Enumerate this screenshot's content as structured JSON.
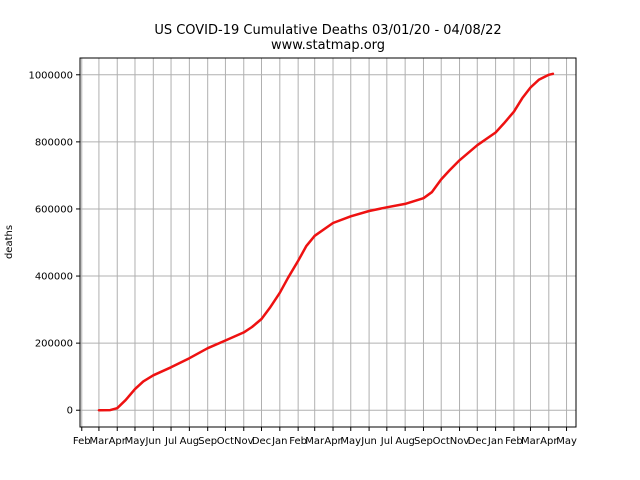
{
  "chart_data": {
    "type": "line",
    "title": "US COVID-19 Cumulative Deaths 03/01/20 - 04/08/22",
    "subtitle": "www.statmap.org",
    "xlabel": "",
    "ylabel": "deaths",
    "grid": true,
    "series_color": "#ee1111",
    "x_axis_type": "date",
    "xlim": [
      "2020-01-29",
      "2022-05-17"
    ],
    "ylim": [
      -50000,
      1050000
    ],
    "x_ticks": [
      {
        "date": "2020-02-01",
        "label": "Feb"
      },
      {
        "date": "2020-03-01",
        "label": "Mar"
      },
      {
        "date": "2020-04-01",
        "label": "Apr"
      },
      {
        "date": "2020-05-01",
        "label": "May"
      },
      {
        "date": "2020-06-01",
        "label": "Jun"
      },
      {
        "date": "2020-07-01",
        "label": "Jul"
      },
      {
        "date": "2020-08-01",
        "label": "Aug"
      },
      {
        "date": "2020-09-01",
        "label": "Sep"
      },
      {
        "date": "2020-10-01",
        "label": "Oct"
      },
      {
        "date": "2020-11-01",
        "label": "Nov"
      },
      {
        "date": "2020-12-01",
        "label": "Dec"
      },
      {
        "date": "2021-01-01",
        "label": "Jan"
      },
      {
        "date": "2021-02-01",
        "label": "Feb"
      },
      {
        "date": "2021-03-01",
        "label": "Mar"
      },
      {
        "date": "2021-04-01",
        "label": "Apr"
      },
      {
        "date": "2021-05-01",
        "label": "May"
      },
      {
        "date": "2021-06-01",
        "label": "Jun"
      },
      {
        "date": "2021-07-01",
        "label": "Jul"
      },
      {
        "date": "2021-08-01",
        "label": "Aug"
      },
      {
        "date": "2021-09-01",
        "label": "Sep"
      },
      {
        "date": "2021-10-01",
        "label": "Oct"
      },
      {
        "date": "2021-11-01",
        "label": "Nov"
      },
      {
        "date": "2021-12-01",
        "label": "Dec"
      },
      {
        "date": "2022-01-01",
        "label": "Jan"
      },
      {
        "date": "2022-02-01",
        "label": "Feb"
      },
      {
        "date": "2022-03-01",
        "label": "Mar"
      },
      {
        "date": "2022-04-01",
        "label": "Apr"
      },
      {
        "date": "2022-05-01",
        "label": "May"
      }
    ],
    "y_ticks": [
      {
        "value": 0,
        "label": "0"
      },
      {
        "value": 200000,
        "label": "200000"
      },
      {
        "value": 400000,
        "label": "400000"
      },
      {
        "value": 600000,
        "label": "600000"
      },
      {
        "value": 800000,
        "label": "800000"
      },
      {
        "value": 1000000,
        "label": "1000000"
      }
    ],
    "series": [
      {
        "points": [
          {
            "date": "2020-03-01",
            "y": 0
          },
          {
            "date": "2020-03-20",
            "y": 300
          },
          {
            "date": "2020-04-01",
            "y": 6000
          },
          {
            "date": "2020-04-15",
            "y": 30000
          },
          {
            "date": "2020-05-01",
            "y": 63000
          },
          {
            "date": "2020-05-15",
            "y": 86000
          },
          {
            "date": "2020-06-01",
            "y": 104000
          },
          {
            "date": "2020-07-01",
            "y": 128000
          },
          {
            "date": "2020-08-01",
            "y": 155000
          },
          {
            "date": "2020-09-01",
            "y": 185000
          },
          {
            "date": "2020-10-01",
            "y": 208000
          },
          {
            "date": "2020-11-01",
            "y": 232000
          },
          {
            "date": "2020-11-15",
            "y": 248000
          },
          {
            "date": "2020-12-01",
            "y": 272000
          },
          {
            "date": "2020-12-15",
            "y": 305000
          },
          {
            "date": "2021-01-01",
            "y": 350000
          },
          {
            "date": "2021-01-15",
            "y": 395000
          },
          {
            "date": "2021-02-01",
            "y": 445000
          },
          {
            "date": "2021-02-15",
            "y": 490000
          },
          {
            "date": "2021-03-01",
            "y": 520000
          },
          {
            "date": "2021-04-01",
            "y": 558000
          },
          {
            "date": "2021-05-01",
            "y": 578000
          },
          {
            "date": "2021-06-01",
            "y": 594000
          },
          {
            "date": "2021-07-01",
            "y": 605000
          },
          {
            "date": "2021-08-01",
            "y": 615000
          },
          {
            "date": "2021-09-01",
            "y": 632000
          },
          {
            "date": "2021-09-15",
            "y": 650000
          },
          {
            "date": "2021-10-01",
            "y": 688000
          },
          {
            "date": "2021-10-15",
            "y": 715000
          },
          {
            "date": "2021-11-01",
            "y": 745000
          },
          {
            "date": "2021-12-01",
            "y": 790000
          },
          {
            "date": "2022-01-01",
            "y": 828000
          },
          {
            "date": "2022-01-15",
            "y": 855000
          },
          {
            "date": "2022-02-01",
            "y": 890000
          },
          {
            "date": "2022-02-15",
            "y": 930000
          },
          {
            "date": "2022-03-01",
            "y": 962000
          },
          {
            "date": "2022-03-15",
            "y": 985000
          },
          {
            "date": "2022-04-01",
            "y": 1000000
          },
          {
            "date": "2022-04-08",
            "y": 1003000
          }
        ]
      }
    ]
  }
}
